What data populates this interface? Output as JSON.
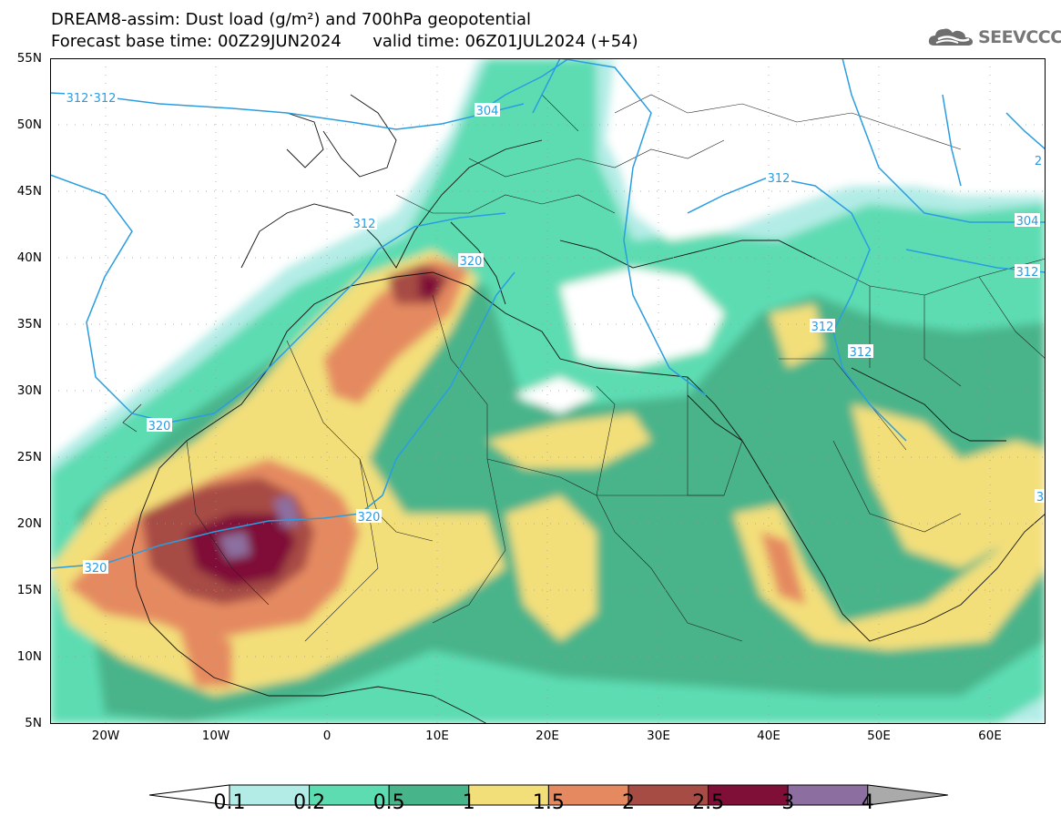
{
  "title": {
    "line1": "DREAM8-assim: Dust load (g/m²) and 700hPa geopotential",
    "line2": "Forecast base time: 00Z29JUN2024      valid time: 06Z01JUL2024 (+54)"
  },
  "logo": {
    "text": "SEEVCCC",
    "icon": "cloud-icon"
  },
  "axes": {
    "lat_labels": [
      "55N",
      "50N",
      "45N",
      "40N",
      "35N",
      "30N",
      "25N",
      "20N",
      "15N",
      "10N",
      "5N"
    ],
    "lon_labels": [
      "20W",
      "10W",
      "0",
      "10E",
      "20E",
      "30E",
      "40E",
      "50E",
      "60E"
    ]
  },
  "contours": {
    "labels": [
      "312",
      "312",
      "304",
      "312",
      "320",
      "312",
      "312",
      "312",
      "304",
      "312",
      "320",
      "320",
      "320",
      "2",
      "3"
    ],
    "color": "#2a9de0"
  },
  "legend": {
    "labels": [
      "0.1",
      "0.2",
      "0.5",
      "1",
      "1.5",
      "2",
      "2.5",
      "3",
      "4"
    ],
    "colors": [
      "#ffffff",
      "#b3ece6",
      "#5ddcb2",
      "#48b48a",
      "#f3df7a",
      "#e58a60",
      "#a74b45",
      "#7f0f37",
      "#8c6fa0",
      "#aaaaaa"
    ]
  },
  "chart_data": {
    "type": "heatmap",
    "title": "DREAM8-assim: Dust load (g/m²) and 700hPa geopotential",
    "lon_range": [
      -25,
      65
    ],
    "lat_range": [
      5,
      55
    ],
    "color_bins": [
      0.1,
      0.2,
      0.5,
      1,
      1.5,
      2,
      2.5,
      3,
      4
    ],
    "geopotential_contours": [
      304,
      312,
      320
    ]
  }
}
